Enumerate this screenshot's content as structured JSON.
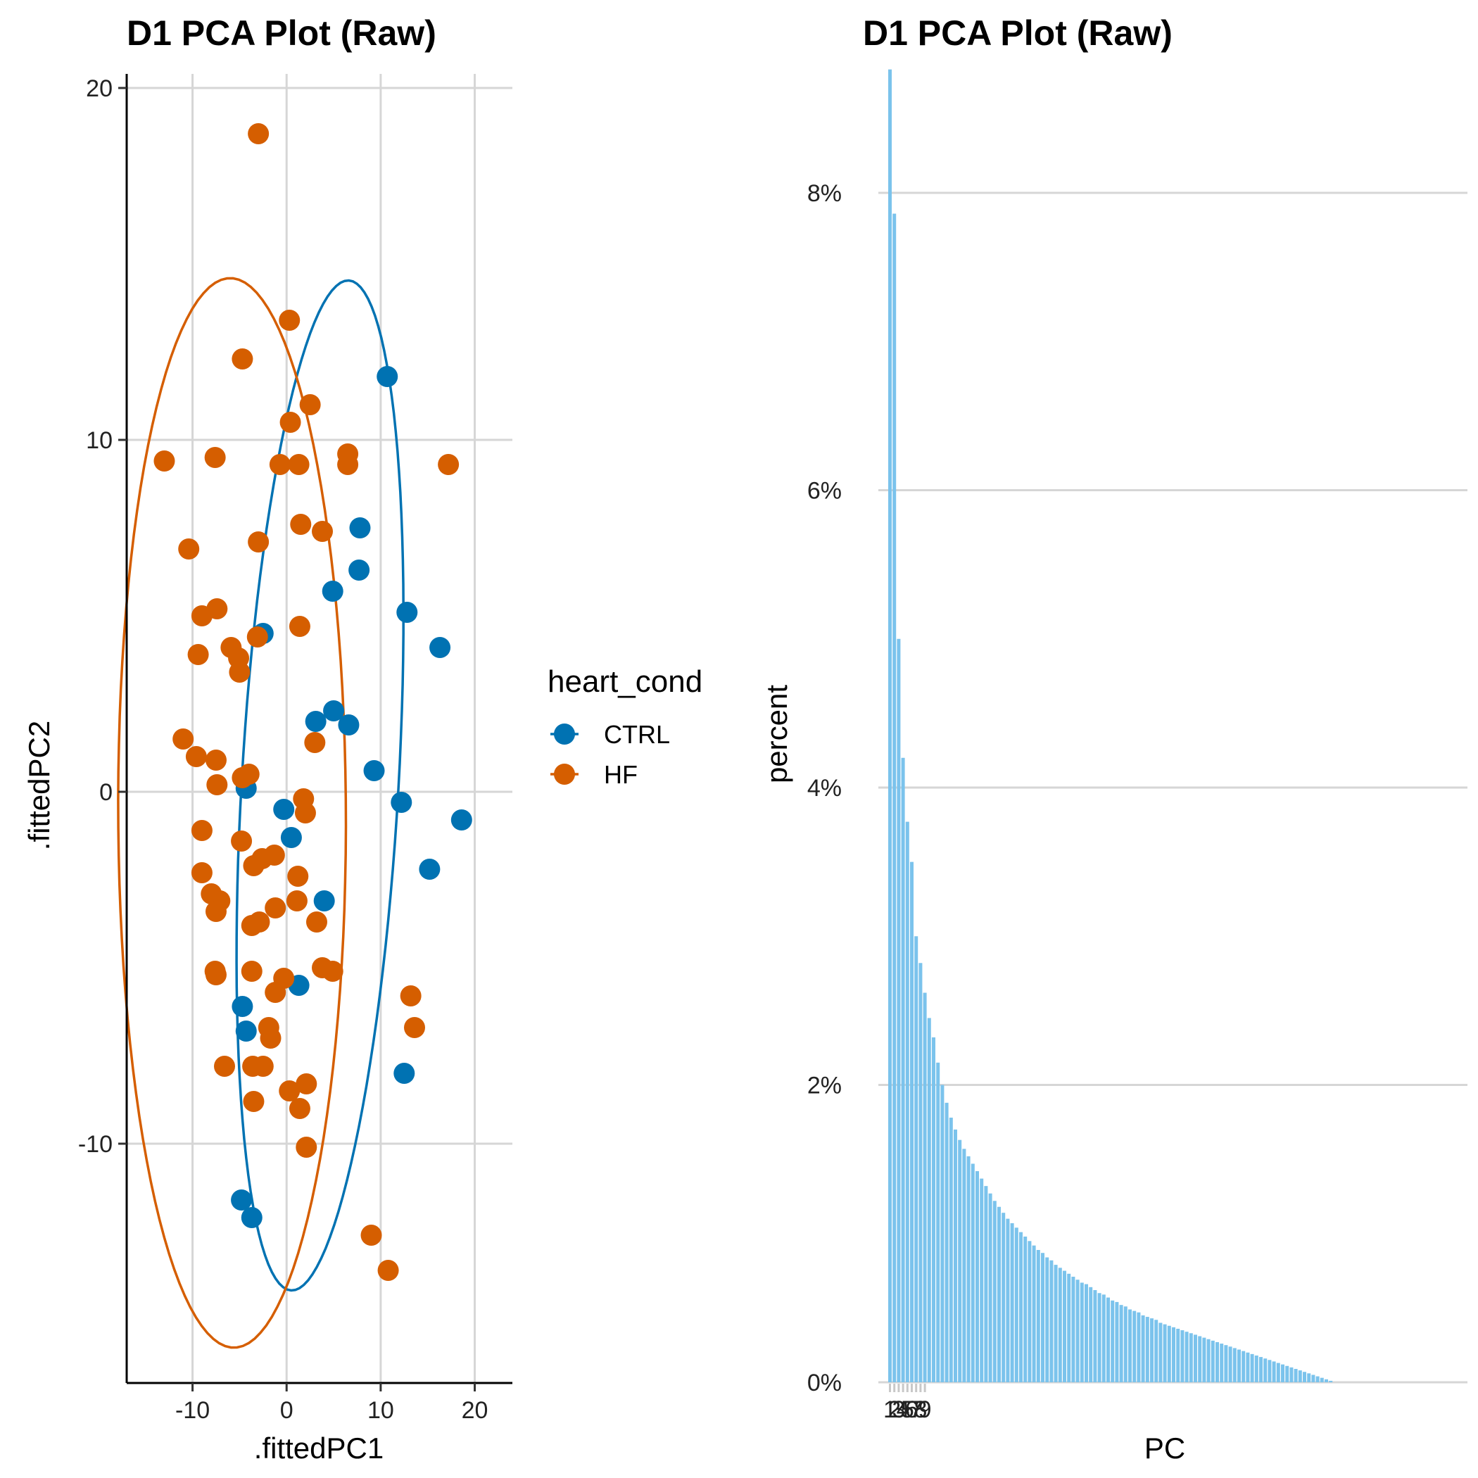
{
  "chart_data": [
    {
      "type": "scatter",
      "title": "D1 PCA Plot (Raw)",
      "xlabel": ".fittedPC1",
      "ylabel": ".fittedPC2",
      "xlim": [
        -17,
        24
      ],
      "ylim": [
        -16.8,
        20.4
      ],
      "xticks": [
        -10,
        0,
        10,
        20
      ],
      "yticks": [
        -10,
        0,
        10,
        20
      ],
      "grid": true,
      "legend": {
        "title": "heart_cond",
        "position": "right",
        "entries": [
          {
            "label": "CTRL",
            "color": "#0072B2"
          },
          {
            "label": "HF",
            "color": "#D55E00"
          }
        ]
      },
      "ellipses": [
        {
          "group": "CTRL",
          "cx": 3.55,
          "cy": 0.18,
          "a": 14.8,
          "b": 8.1,
          "angle_deg": 73
        },
        {
          "group": "HF",
          "cx": -5.8,
          "cy": -0.6,
          "a": 15.2,
          "b": 12.1,
          "angle_deg": 92
        }
      ],
      "series": [
        {
          "name": "CTRL",
          "color": "#0072B2",
          "points": [
            [
              10.7,
              11.8
            ],
            [
              7.8,
              7.5
            ],
            [
              7.7,
              6.3
            ],
            [
              4.9,
              5.7
            ],
            [
              12.8,
              5.1
            ],
            [
              16.3,
              4.1
            ],
            [
              -2.5,
              4.5
            ],
            [
              5.0,
              2.3
            ],
            [
              3.1,
              2.0
            ],
            [
              6.6,
              1.9
            ],
            [
              9.3,
              0.6
            ],
            [
              -4.3,
              0.1
            ],
            [
              12.2,
              -0.3
            ],
            [
              -0.3,
              -0.5
            ],
            [
              18.6,
              -0.8
            ],
            [
              0.5,
              -1.3
            ],
            [
              15.2,
              -2.2
            ],
            [
              4.0,
              -3.1
            ],
            [
              1.3,
              -5.5
            ],
            [
              -4.7,
              -6.1
            ],
            [
              -4.3,
              -6.8
            ],
            [
              12.5,
              -8.0
            ],
            [
              -4.8,
              -11.6
            ],
            [
              -3.7,
              -12.1
            ]
          ]
        },
        {
          "name": "HF",
          "color": "#D55E00",
          "points": [
            [
              -3.0,
              18.7
            ],
            [
              0.3,
              13.4
            ],
            [
              -4.7,
              12.3
            ],
            [
              2.5,
              11.0
            ],
            [
              0.4,
              10.5
            ],
            [
              -13.0,
              9.4
            ],
            [
              -7.6,
              9.5
            ],
            [
              -0.7,
              9.3
            ],
            [
              1.3,
              9.3
            ],
            [
              6.5,
              9.6
            ],
            [
              6.5,
              9.3
            ],
            [
              17.2,
              9.3
            ],
            [
              1.5,
              7.6
            ],
            [
              3.8,
              7.4
            ],
            [
              -3.0,
              7.1
            ],
            [
              -10.4,
              6.9
            ],
            [
              -7.4,
              5.2
            ],
            [
              -9.0,
              5.0
            ],
            [
              1.4,
              4.7
            ],
            [
              -3.1,
              4.4
            ],
            [
              -9.4,
              3.9
            ],
            [
              -5.9,
              4.1
            ],
            [
              -5.1,
              3.8
            ],
            [
              -5.0,
              3.4
            ],
            [
              -11.0,
              1.5
            ],
            [
              -9.6,
              1.0
            ],
            [
              3.0,
              1.4
            ],
            [
              -7.5,
              0.9
            ],
            [
              -4.0,
              0.5
            ],
            [
              -4.7,
              0.4
            ],
            [
              -7.4,
              0.2
            ],
            [
              1.8,
              -0.2
            ],
            [
              2.0,
              -0.6
            ],
            [
              -9.0,
              -1.1
            ],
            [
              -4.8,
              -1.4
            ],
            [
              -2.6,
              -1.9
            ],
            [
              -1.3,
              -1.8
            ],
            [
              -3.5,
              -2.1
            ],
            [
              -9.0,
              -2.3
            ],
            [
              1.2,
              -2.4
            ],
            [
              -8.0,
              -2.9
            ],
            [
              -7.1,
              -3.1
            ],
            [
              1.1,
              -3.1
            ],
            [
              -7.5,
              -3.4
            ],
            [
              -1.2,
              -3.3
            ],
            [
              -2.9,
              -3.7
            ],
            [
              -3.7,
              -3.8
            ],
            [
              3.2,
              -3.7
            ],
            [
              -7.6,
              -5.1
            ],
            [
              -7.5,
              -5.2
            ],
            [
              -3.7,
              -5.1
            ],
            [
              -0.3,
              -5.3
            ],
            [
              3.8,
              -5.0
            ],
            [
              4.9,
              -5.1
            ],
            [
              -1.2,
              -5.7
            ],
            [
              13.2,
              -5.8
            ],
            [
              -1.9,
              -6.7
            ],
            [
              13.6,
              -6.7
            ],
            [
              -1.7,
              -7.0
            ],
            [
              -6.6,
              -7.8
            ],
            [
              -3.6,
              -7.8
            ],
            [
              -2.5,
              -7.8
            ],
            [
              0.3,
              -8.5
            ],
            [
              2.1,
              -8.3
            ],
            [
              -3.5,
              -8.8
            ],
            [
              1.4,
              -9.0
            ],
            [
              2.1,
              -10.1
            ],
            [
              9.0,
              -12.6
            ],
            [
              10.8,
              -13.6
            ]
          ]
        }
      ]
    },
    {
      "type": "bar",
      "title": "D1 PCA Plot (Raw)",
      "xlabel": "PC",
      "ylabel": "percent",
      "ylim": [
        0,
        0.088
      ],
      "yticks": [
        "0%",
        "2%",
        "4%",
        "6%",
        "8%"
      ],
      "ytick_values": [
        0,
        0.02,
        0.04,
        0.06,
        0.08
      ],
      "xtick_labels": [
        "1",
        "2",
        "3",
        "4",
        "5",
        "6",
        "7",
        "8",
        "9"
      ],
      "grid": "horizontal",
      "bar_color": "#7BC3EC",
      "values": [
        0.0883,
        0.0786,
        0.05,
        0.042,
        0.0377,
        0.035,
        0.03,
        0.0282,
        0.0262,
        0.0245,
        0.0232,
        0.0215,
        0.02,
        0.0188,
        0.0178,
        0.017,
        0.0163,
        0.0157,
        0.0152,
        0.0147,
        0.0142,
        0.0137,
        0.0132,
        0.0127,
        0.0122,
        0.0118,
        0.0114,
        0.011,
        0.0107,
        0.0104,
        0.0101,
        0.0098,
        0.0095,
        0.0092,
        0.0089,
        0.0087,
        0.0084,
        0.0082,
        0.0079,
        0.0077,
        0.0075,
        0.0073,
        0.0071,
        0.0069,
        0.0067,
        0.0066,
        0.0064,
        0.0062,
        0.006,
        0.0059,
        0.0057,
        0.0055,
        0.0054,
        0.0052,
        0.0051,
        0.0049,
        0.0048,
        0.0047,
        0.0045,
        0.0044,
        0.0043,
        0.0042,
        0.004,
        0.0039,
        0.0038,
        0.0037,
        0.0036,
        0.0035,
        0.0034,
        0.0033,
        0.0032,
        0.0031,
        0.003,
        0.0029,
        0.0028,
        0.0027,
        0.0026,
        0.0025,
        0.0024,
        0.0023,
        0.0022,
        0.0021,
        0.002,
        0.0019,
        0.0018,
        0.0017,
        0.0016,
        0.0015,
        0.0014,
        0.0013,
        0.0012,
        0.0011,
        0.001,
        0.0009,
        0.0008,
        0.0007,
        0.0006,
        0.0005,
        0.0004,
        0.0003,
        0.0002,
        0.0001
      ]
    }
  ]
}
